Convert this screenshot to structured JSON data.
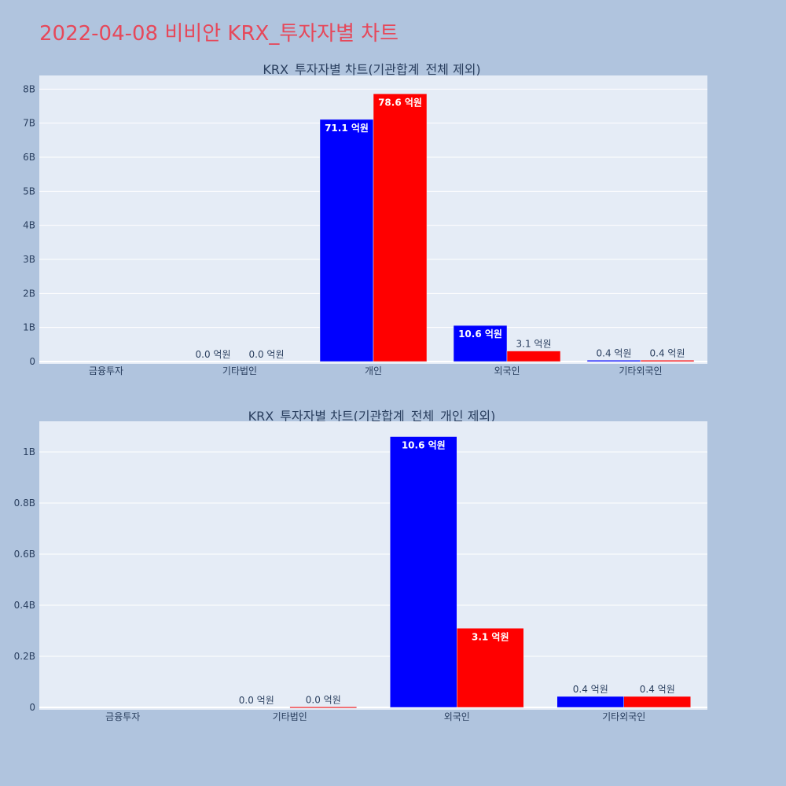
{
  "page": {
    "title": "2022-04-08 비비안 KRX_투자자별 차트"
  },
  "colors": {
    "background": "#b0c4de",
    "plot_bg": "#e5ecf6",
    "title": "#e6485a",
    "series_a": "#0000ff",
    "series_b": "#ff0000"
  },
  "chart_data": [
    {
      "type": "bar",
      "title": "KRX_투자자별 차트(기관합계_전체 제외)",
      "categories": [
        "금융투자",
        "기타법인",
        "개인",
        "외국인",
        "기타외국인"
      ],
      "ylim": [
        0,
        8400000000
      ],
      "yticks": [
        0,
        1000000000,
        2000000000,
        3000000000,
        4000000000,
        5000000000,
        6000000000,
        7000000000,
        8000000000
      ],
      "ytick_labels": [
        "0",
        "1B",
        "2B",
        "3B",
        "4B",
        "5B",
        "6B",
        "7B",
        "8B"
      ],
      "grid": true,
      "series": [
        {
          "color": "#0000ff",
          "values": [
            0,
            0,
            7110000000,
            1060000000,
            40000000
          ],
          "labels": [
            "",
            "0.0 억원",
            "71.1 억원",
            "10.6 억원",
            "0.4 억원"
          ]
        },
        {
          "color": "#ff0000",
          "values": [
            0,
            0,
            7860000000,
            310000000,
            40000000
          ],
          "labels": [
            "",
            "0.0 억원",
            "78.6 억원",
            "3.1 억원",
            "0.4 억원"
          ]
        }
      ]
    },
    {
      "type": "bar",
      "title": "KRX_투자자별 차트(기관합계_전체_개인 제외)",
      "categories": [
        "금융투자",
        "기타법인",
        "외국인",
        "기타외국인"
      ],
      "ylim": [
        0,
        1120000000
      ],
      "yticks": [
        0,
        200000000,
        400000000,
        600000000,
        800000000,
        1000000000
      ],
      "ytick_labels": [
        "0",
        "0.2B",
        "0.4B",
        "0.6B",
        "0.8B",
        "1B"
      ],
      "grid": true,
      "series": [
        {
          "color": "#0000ff",
          "values": [
            0,
            0,
            1060000000,
            43000000
          ],
          "labels": [
            "",
            "0.0 억원",
            "10.6 억원",
            "0.4 억원"
          ]
        },
        {
          "color": "#ff0000",
          "values": [
            0,
            2000000,
            310000000,
            43000000
          ],
          "labels": [
            "",
            "0.0 억원",
            "3.1 억원",
            "0.4 억원"
          ]
        }
      ]
    }
  ]
}
